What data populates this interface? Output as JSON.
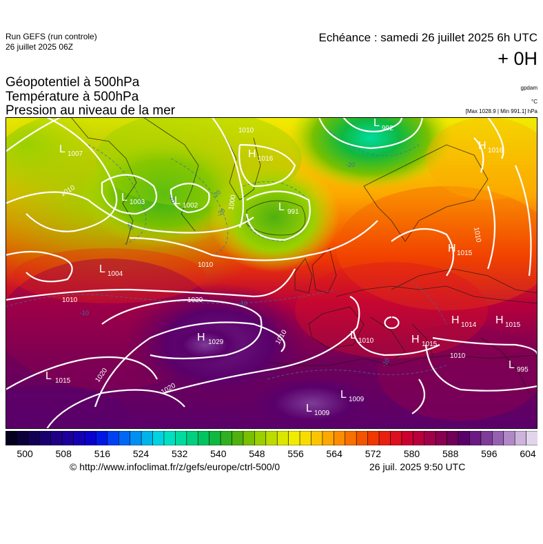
{
  "header": {
    "run_name": "Run GEFS (run controle)",
    "run_date": "26 juillet 2025 06Z",
    "valid_time": "Echéance : samedi 26 juillet 2025 6h UTC",
    "lead_time": "+ 0H"
  },
  "layers": [
    {
      "label": "Géopotentiel à 500hPa",
      "unit": "gpdam"
    },
    {
      "label": "Température à 500hPa",
      "unit": "°C"
    },
    {
      "label": "Pression au niveau de la mer",
      "unit": "[Max 1028.9 | Min 991.1] hPa"
    }
  ],
  "colorbar": {
    "ticks": [
      "500",
      "508",
      "516",
      "524",
      "532",
      "540",
      "548",
      "556",
      "564",
      "572",
      "580",
      "588",
      "596",
      "604"
    ],
    "min": 496,
    "max": 606,
    "colors": [
      "#06001e",
      "#0b0038",
      "#120055",
      "#1a006e",
      "#200084",
      "#1d0099",
      "#1400b2",
      "#0a00cc",
      "#0018e6",
      "#0040f2",
      "#0068f5",
      "#0090f2",
      "#00b4eb",
      "#00d2e0",
      "#00e0c0",
      "#00dca0",
      "#00d080",
      "#00c460",
      "#10b840",
      "#30b020",
      "#50b010",
      "#78c000",
      "#9ad000",
      "#bcdc00",
      "#dae600",
      "#f0ec00",
      "#f8dc00",
      "#fcc400",
      "#fca800",
      "#fc8c00",
      "#f87000",
      "#f45400",
      "#f03800",
      "#e82010",
      "#dc1020",
      "#cc0030",
      "#b8003c",
      "#a00048",
      "#880050",
      "#700058",
      "#5a006a",
      "#6a1a80",
      "#7e3c98",
      "#9660b0",
      "#b088c8",
      "#ccb4dc",
      "#e2d4ea"
    ]
  },
  "pressure_systems": [
    {
      "type": "L",
      "value": "1007"
    },
    {
      "type": "L",
      "value": "1003"
    },
    {
      "type": "L",
      "value": "1002"
    },
    {
      "type": "H",
      "value": "1016"
    },
    {
      "type": "L",
      "value": "991"
    },
    {
      "type": "L",
      "value": "992"
    },
    {
      "type": "H",
      "value": "1016"
    },
    {
      "type": "H",
      "value": "1015"
    },
    {
      "type": "L",
      "value": "1004"
    },
    {
      "type": "H",
      "value": "1029"
    },
    {
      "type": "L",
      "value": "1015"
    },
    {
      "type": "L",
      "value": "1010"
    },
    {
      "type": "H",
      "value": "1015"
    },
    {
      "type": "H",
      "value": "1014"
    },
    {
      "type": "H",
      "value": "1015"
    },
    {
      "type": "L",
      "value": "995"
    },
    {
      "type": "L",
      "value": "1009"
    },
    {
      "type": "L",
      "value": "1009"
    }
  ],
  "isobar_labels": [
    "1010",
    "1010",
    "1010",
    "1000",
    "1020",
    "1020",
    "1020",
    "1010",
    "1010",
    "1010",
    "1010"
  ],
  "temperature_labels": [
    "-20",
    "-20",
    "-20",
    "-20",
    "-20",
    "-10",
    "-10",
    "-10"
  ],
  "footer": {
    "source": "© http://www.infoclimat.fr/z/gefs/europe/ctrl-500/0",
    "timestamp": "26 juil. 2025  9:50 UTC"
  }
}
